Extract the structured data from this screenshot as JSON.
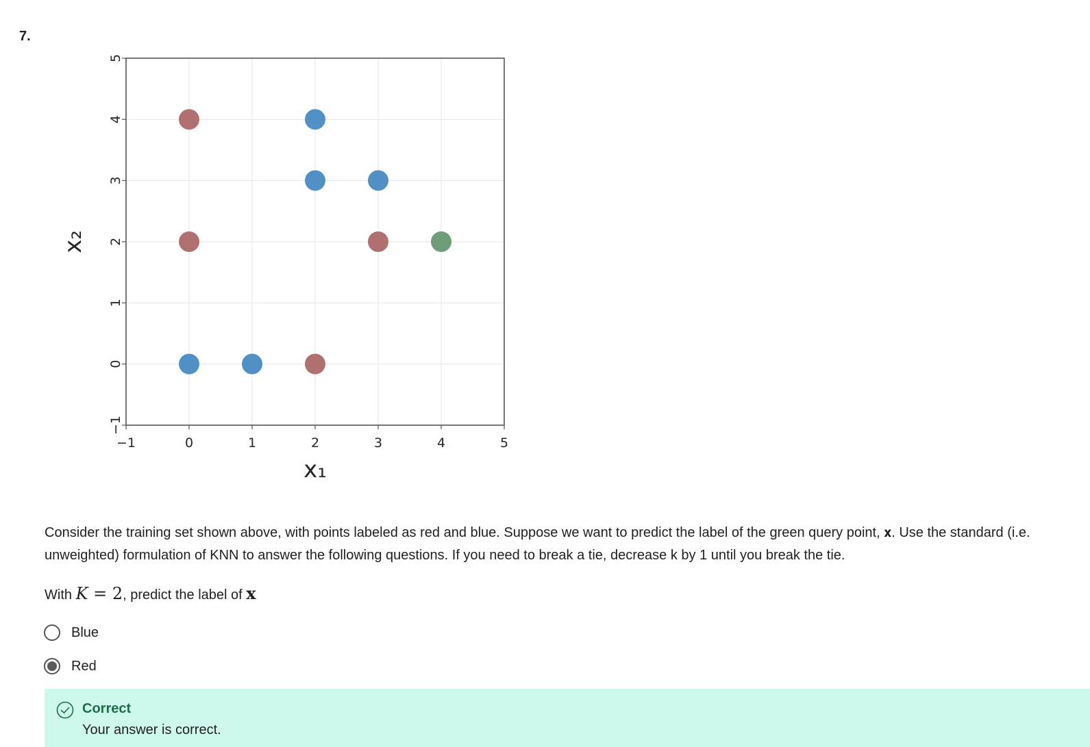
{
  "question_number": "7.",
  "chart_data": {
    "type": "scatter",
    "xlabel": "x₁",
    "ylabel": "x₂",
    "xlim": [
      -1,
      5
    ],
    "ylim": [
      -1,
      5
    ],
    "x_ticks": [
      -1,
      0,
      1,
      2,
      3,
      4,
      5
    ],
    "y_ticks": [
      -1,
      0,
      1,
      2,
      3,
      4,
      5
    ],
    "x_tick_labels": [
      "−1",
      "0",
      "1",
      "2",
      "3",
      "4",
      "5"
    ],
    "y_tick_labels": [
      "−1",
      "0",
      "1",
      "2",
      "3",
      "4",
      "5"
    ],
    "grid": true,
    "series": [
      {
        "name": "red",
        "color": "#b07070",
        "points": [
          [
            0,
            4
          ],
          [
            0,
            2
          ],
          [
            3,
            2
          ],
          [
            2,
            0
          ]
        ]
      },
      {
        "name": "blue",
        "color": "#5090c4",
        "points": [
          [
            2,
            4
          ],
          [
            2,
            3
          ],
          [
            3,
            3
          ],
          [
            0,
            0
          ],
          [
            1,
            0
          ]
        ]
      },
      {
        "name": "query",
        "color": "#6e9e78",
        "points": [
          [
            4,
            2
          ]
        ]
      }
    ]
  },
  "question_text": "Consider the training set shown above, with points labeled as red and blue. Suppose we want to predict the label of the green query point, 𝐱. Use the standard (i.e. unweighted) formulation of KNN to answer the following questions. If you need to break a tie, decrease k by 1 until you break the tie.",
  "prompt": {
    "prefix": "With",
    "math_k": "K",
    "math_eq": " = 2",
    "middle": ", predict the label of",
    "math_x": "x"
  },
  "options": [
    {
      "label": "Blue",
      "selected": false
    },
    {
      "label": "Red",
      "selected": true
    }
  ],
  "feedback": {
    "title": "Correct",
    "text": "Your answer is correct.",
    "accent": "#1a6e4a",
    "background": "#cff8ec"
  }
}
